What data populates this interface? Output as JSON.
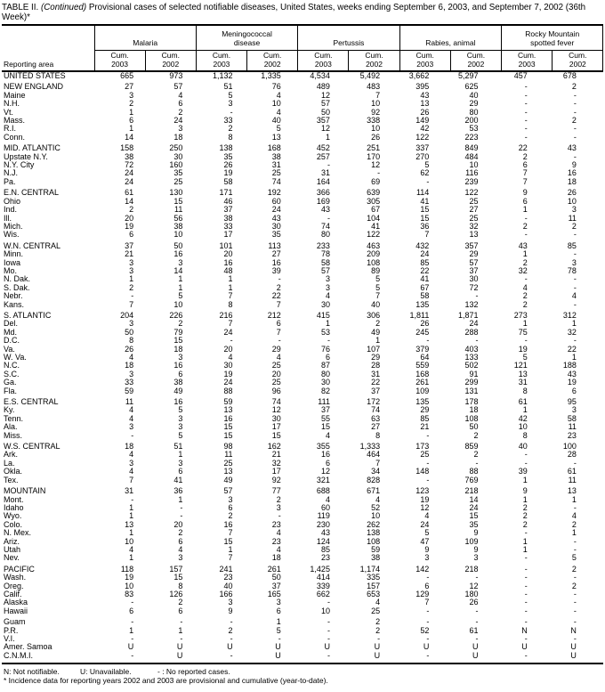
{
  "title": {
    "prefix": "TABLE II.",
    "continued": "(Continued)",
    "rest": "Provisional cases of selected notifiable diseases, United States, weeks ending September 6, 2003, and September 7, 2002 (36th Week)*"
  },
  "table": {
    "reporting_area_label": "Reporting area",
    "cum_label": "Cum.",
    "years": [
      "2003",
      "2002"
    ],
    "groups": [
      {
        "label": "Malaria",
        "lines": [
          "Malaria"
        ]
      },
      {
        "label": "Meningococcal disease",
        "lines": [
          "Meningococcal",
          "disease"
        ]
      },
      {
        "label": "Pertussis",
        "lines": [
          "Pertussis"
        ]
      },
      {
        "label": "Rabies, animal",
        "lines": [
          "Rabies, animal"
        ]
      },
      {
        "label": "Rocky Mountain spotted fever",
        "lines": [
          "Rocky Mountain",
          "spotted fever"
        ]
      }
    ],
    "sections": [
      {
        "rows": [
          [
            "UNITED STATES",
            "665",
            "973",
            "1,132",
            "1,335",
            "4,534",
            "5,492",
            "3,662",
            "5,297",
            "457",
            "678"
          ]
        ]
      },
      {
        "rows": [
          [
            "NEW ENGLAND",
            "27",
            "57",
            "51",
            "76",
            "489",
            "483",
            "395",
            "625",
            "-",
            "2"
          ],
          [
            "Maine",
            "3",
            "4",
            "5",
            "4",
            "12",
            "7",
            "43",
            "40",
            "-",
            "-"
          ],
          [
            "N.H.",
            "2",
            "6",
            "3",
            "10",
            "57",
            "10",
            "13",
            "29",
            "-",
            "-"
          ],
          [
            "Vt.",
            "1",
            "2",
            "-",
            "4",
            "50",
            "92",
            "26",
            "80",
            "-",
            "-"
          ],
          [
            "Mass.",
            "6",
            "24",
            "33",
            "40",
            "357",
            "338",
            "149",
            "200",
            "-",
            "2"
          ],
          [
            "R.I.",
            "1",
            "3",
            "2",
            "5",
            "12",
            "10",
            "42",
            "53",
            "-",
            "-"
          ],
          [
            "Conn.",
            "14",
            "18",
            "8",
            "13",
            "1",
            "26",
            "122",
            "223",
            "-",
            "-"
          ]
        ]
      },
      {
        "rows": [
          [
            "MID. ATLANTIC",
            "158",
            "250",
            "138",
            "168",
            "452",
            "251",
            "337",
            "849",
            "22",
            "43"
          ],
          [
            "Upstate N.Y.",
            "38",
            "30",
            "35",
            "38",
            "257",
            "170",
            "270",
            "484",
            "2",
            "-"
          ],
          [
            "N.Y. City",
            "72",
            "160",
            "26",
            "31",
            "-",
            "12",
            "5",
            "10",
            "6",
            "9"
          ],
          [
            "N.J.",
            "24",
            "35",
            "19",
            "25",
            "31",
            "-",
            "62",
            "116",
            "7",
            "16"
          ],
          [
            "Pa.",
            "24",
            "25",
            "58",
            "74",
            "164",
            "69",
            "-",
            "239",
            "7",
            "18"
          ]
        ]
      },
      {
        "rows": [
          [
            "E.N. CENTRAL",
            "61",
            "130",
            "171",
            "192",
            "366",
            "639",
            "114",
            "122",
            "9",
            "26"
          ],
          [
            "Ohio",
            "14",
            "15",
            "46",
            "60",
            "169",
            "305",
            "41",
            "25",
            "6",
            "10"
          ],
          [
            "Ind.",
            "2",
            "11",
            "37",
            "24",
            "43",
            "67",
            "15",
            "27",
            "1",
            "3"
          ],
          [
            "Ill.",
            "20",
            "56",
            "38",
            "43",
            "-",
            "104",
            "15",
            "25",
            "-",
            "11"
          ],
          [
            "Mich.",
            "19",
            "38",
            "33",
            "30",
            "74",
            "41",
            "36",
            "32",
            "2",
            "2"
          ],
          [
            "Wis.",
            "6",
            "10",
            "17",
            "35",
            "80",
            "122",
            "7",
            "13",
            "-",
            "-"
          ]
        ]
      },
      {
        "rows": [
          [
            "W.N. CENTRAL",
            "37",
            "50",
            "101",
            "113",
            "233",
            "463",
            "432",
            "357",
            "43",
            "85"
          ],
          [
            "Minn.",
            "21",
            "16",
            "20",
            "27",
            "78",
            "209",
            "24",
            "29",
            "1",
            "-"
          ],
          [
            "Iowa",
            "3",
            "3",
            "16",
            "16",
            "58",
            "108",
            "85",
            "57",
            "2",
            "3"
          ],
          [
            "Mo.",
            "3",
            "14",
            "48",
            "39",
            "57",
            "89",
            "22",
            "37",
            "32",
            "78"
          ],
          [
            "N. Dak.",
            "1",
            "1",
            "1",
            "-",
            "3",
            "5",
            "41",
            "30",
            "-",
            "-"
          ],
          [
            "S. Dak.",
            "2",
            "1",
            "1",
            "2",
            "3",
            "5",
            "67",
            "72",
            "4",
            "-"
          ],
          [
            "Nebr.",
            "-",
            "5",
            "7",
            "22",
            "4",
            "7",
            "58",
            "-",
            "2",
            "4"
          ],
          [
            "Kans.",
            "7",
            "10",
            "8",
            "7",
            "30",
            "40",
            "135",
            "132",
            "2",
            "-"
          ]
        ]
      },
      {
        "rows": [
          [
            "S. ATLANTIC",
            "204",
            "226",
            "216",
            "212",
            "415",
            "306",
            "1,811",
            "1,871",
            "273",
            "312"
          ],
          [
            "Del.",
            "3",
            "2",
            "7",
            "6",
            "1",
            "2",
            "26",
            "24",
            "1",
            "1"
          ],
          [
            "Md.",
            "50",
            "79",
            "24",
            "7",
            "53",
            "49",
            "245",
            "288",
            "75",
            "32"
          ],
          [
            "D.C.",
            "8",
            "15",
            "-",
            "-",
            "-",
            "1",
            "-",
            "-",
            "-",
            "-"
          ],
          [
            "Va.",
            "26",
            "18",
            "20",
            "29",
            "76",
            "107",
            "379",
            "403",
            "19",
            "22"
          ],
          [
            "W. Va.",
            "4",
            "3",
            "4",
            "4",
            "6",
            "29",
            "64",
            "133",
            "5",
            "1"
          ],
          [
            "N.C.",
            "18",
            "16",
            "30",
            "25",
            "87",
            "28",
            "559",
            "502",
            "121",
            "188"
          ],
          [
            "S.C.",
            "3",
            "6",
            "19",
            "20",
            "80",
            "31",
            "168",
            "91",
            "13",
            "43"
          ],
          [
            "Ga.",
            "33",
            "38",
            "24",
            "25",
            "30",
            "22",
            "261",
            "299",
            "31",
            "19"
          ],
          [
            "Fla.",
            "59",
            "49",
            "88",
            "96",
            "82",
            "37",
            "109",
            "131",
            "8",
            "6"
          ]
        ]
      },
      {
        "rows": [
          [
            "E.S. CENTRAL",
            "11",
            "16",
            "59",
            "74",
            "111",
            "172",
            "135",
            "178",
            "61",
            "95"
          ],
          [
            "Ky.",
            "4",
            "5",
            "13",
            "12",
            "37",
            "74",
            "29",
            "18",
            "1",
            "3"
          ],
          [
            "Tenn.",
            "4",
            "3",
            "16",
            "30",
            "55",
            "63",
            "85",
            "108",
            "42",
            "58"
          ],
          [
            "Ala.",
            "3",
            "3",
            "15",
            "17",
            "15",
            "27",
            "21",
            "50",
            "10",
            "11"
          ],
          [
            "Miss.",
            "-",
            "5",
            "15",
            "15",
            "4",
            "8",
            "-",
            "2",
            "8",
            "23"
          ]
        ]
      },
      {
        "rows": [
          [
            "W.S. CENTRAL",
            "18",
            "51",
            "98",
            "162",
            "355",
            "1,333",
            "173",
            "859",
            "40",
            "100"
          ],
          [
            "Ark.",
            "4",
            "1",
            "11",
            "21",
            "16",
            "464",
            "25",
            "2",
            "-",
            "28"
          ],
          [
            "La.",
            "3",
            "3",
            "25",
            "32",
            "6",
            "7",
            "-",
            "-",
            "-",
            "-"
          ],
          [
            "Okla.",
            "4",
            "6",
            "13",
            "17",
            "12",
            "34",
            "148",
            "88",
            "39",
            "61"
          ],
          [
            "Tex.",
            "7",
            "41",
            "49",
            "92",
            "321",
            "828",
            "-",
            "769",
            "1",
            "11"
          ]
        ]
      },
      {
        "rows": [
          [
            "MOUNTAIN",
            "31",
            "36",
            "57",
            "77",
            "688",
            "671",
            "123",
            "218",
            "9",
            "13"
          ],
          [
            "Mont.",
            "-",
            "1",
            "3",
            "2",
            "4",
            "4",
            "19",
            "14",
            "1",
            "1"
          ],
          [
            "Idaho",
            "1",
            "-",
            "6",
            "3",
            "60",
            "52",
            "12",
            "24",
            "2",
            "-"
          ],
          [
            "Wyo.",
            "1",
            "-",
            "2",
            "-",
            "119",
            "10",
            "4",
            "15",
            "2",
            "4"
          ],
          [
            "Colo.",
            "13",
            "20",
            "16",
            "23",
            "230",
            "262",
            "24",
            "35",
            "2",
            "2"
          ],
          [
            "N. Mex.",
            "1",
            "2",
            "7",
            "4",
            "43",
            "138",
            "5",
            "9",
            "-",
            "1"
          ],
          [
            "Ariz.",
            "10",
            "6",
            "15",
            "23",
            "124",
            "108",
            "47",
            "109",
            "1",
            "-"
          ],
          [
            "Utah",
            "4",
            "4",
            "1",
            "4",
            "85",
            "59",
            "9",
            "9",
            "1",
            "-"
          ],
          [
            "Nev.",
            "1",
            "3",
            "7",
            "18",
            "23",
            "38",
            "3",
            "3",
            "-",
            "5"
          ]
        ]
      },
      {
        "rows": [
          [
            "PACIFIC",
            "118",
            "157",
            "241",
            "261",
            "1,425",
            "1,174",
            "142",
            "218",
            "-",
            "2"
          ],
          [
            "Wash.",
            "19",
            "15",
            "23",
            "50",
            "414",
            "335",
            "-",
            "-",
            "-",
            "-"
          ],
          [
            "Oreg.",
            "10",
            "8",
            "40",
            "37",
            "339",
            "157",
            "6",
            "12",
            "-",
            "2"
          ],
          [
            "Calif.",
            "83",
            "126",
            "166",
            "165",
            "662",
            "653",
            "129",
            "180",
            "-",
            "-"
          ],
          [
            "Alaska",
            "-",
            "2",
            "3",
            "3",
            "-",
            "4",
            "7",
            "26",
            "-",
            "-"
          ],
          [
            "Hawaii",
            "6",
            "6",
            "9",
            "6",
            "10",
            "25",
            "-",
            "-",
            "-",
            "-"
          ]
        ]
      },
      {
        "rows": [
          [
            "Guam",
            "-",
            "-",
            "-",
            "1",
            "-",
            "2",
            "-",
            "-",
            "-",
            "-"
          ],
          [
            "P.R.",
            "1",
            "1",
            "2",
            "5",
            "-",
            "2",
            "52",
            "61",
            "N",
            "N"
          ],
          [
            "V.I.",
            "-",
            "-",
            "-",
            "-",
            "-",
            "-",
            "-",
            "-",
            "-",
            "-"
          ],
          [
            "Amer. Samoa",
            "U",
            "U",
            "U",
            "U",
            "U",
            "U",
            "U",
            "U",
            "U",
            "U"
          ],
          [
            "C.N.M.I.",
            "-",
            "U",
            "-",
            "U",
            "-",
            "U",
            "-",
            "U",
            "-",
            "U"
          ]
        ]
      }
    ]
  },
  "footnotes": {
    "legend": [
      "N: Not notifiable.",
      "U: Unavailable.",
      "- : No reported cases."
    ],
    "note": "* Incidence data for reporting years 2002 and 2003 are provisional and cumulative (year-to-date)."
  }
}
